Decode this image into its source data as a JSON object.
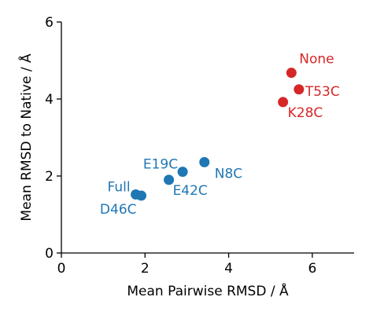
{
  "chart_data": {
    "type": "scatter",
    "title": "",
    "xlabel": "Mean Pairwise RMSD / Å",
    "ylabel": "Mean RMSD to Native / Å",
    "xlim": [
      0,
      7
    ],
    "ylim": [
      0,
      6
    ],
    "xticks": [
      0,
      2,
      4,
      6
    ],
    "yticks": [
      0,
      2,
      4,
      6
    ],
    "xtick_labels": [
      "0",
      "2",
      "4",
      "6"
    ],
    "ytick_labels": [
      "0",
      "2",
      "4",
      "6"
    ],
    "grid": false,
    "colors": {
      "blue": "#1f77b4",
      "red": "#d62728"
    },
    "points": [
      {
        "label": "None",
        "x": 5.5,
        "y": 4.68,
        "color": "#d62728"
      },
      {
        "label": "T53C",
        "x": 5.68,
        "y": 4.25,
        "color": "#d62728"
      },
      {
        "label": "K28C",
        "x": 5.3,
        "y": 3.92,
        "color": "#d62728"
      },
      {
        "label": "N8C",
        "x": 3.42,
        "y": 2.36,
        "color": "#1f77b4"
      },
      {
        "label": "E19C",
        "x": 2.9,
        "y": 2.11,
        "color": "#1f77b4"
      },
      {
        "label": "E42C",
        "x": 2.57,
        "y": 1.9,
        "color": "#1f77b4"
      },
      {
        "label": "Full",
        "x": 1.78,
        "y": 1.52,
        "color": "#1f77b4"
      },
      {
        "label": "D46C",
        "x": 1.91,
        "y": 1.49,
        "color": "#1f77b4"
      }
    ]
  }
}
